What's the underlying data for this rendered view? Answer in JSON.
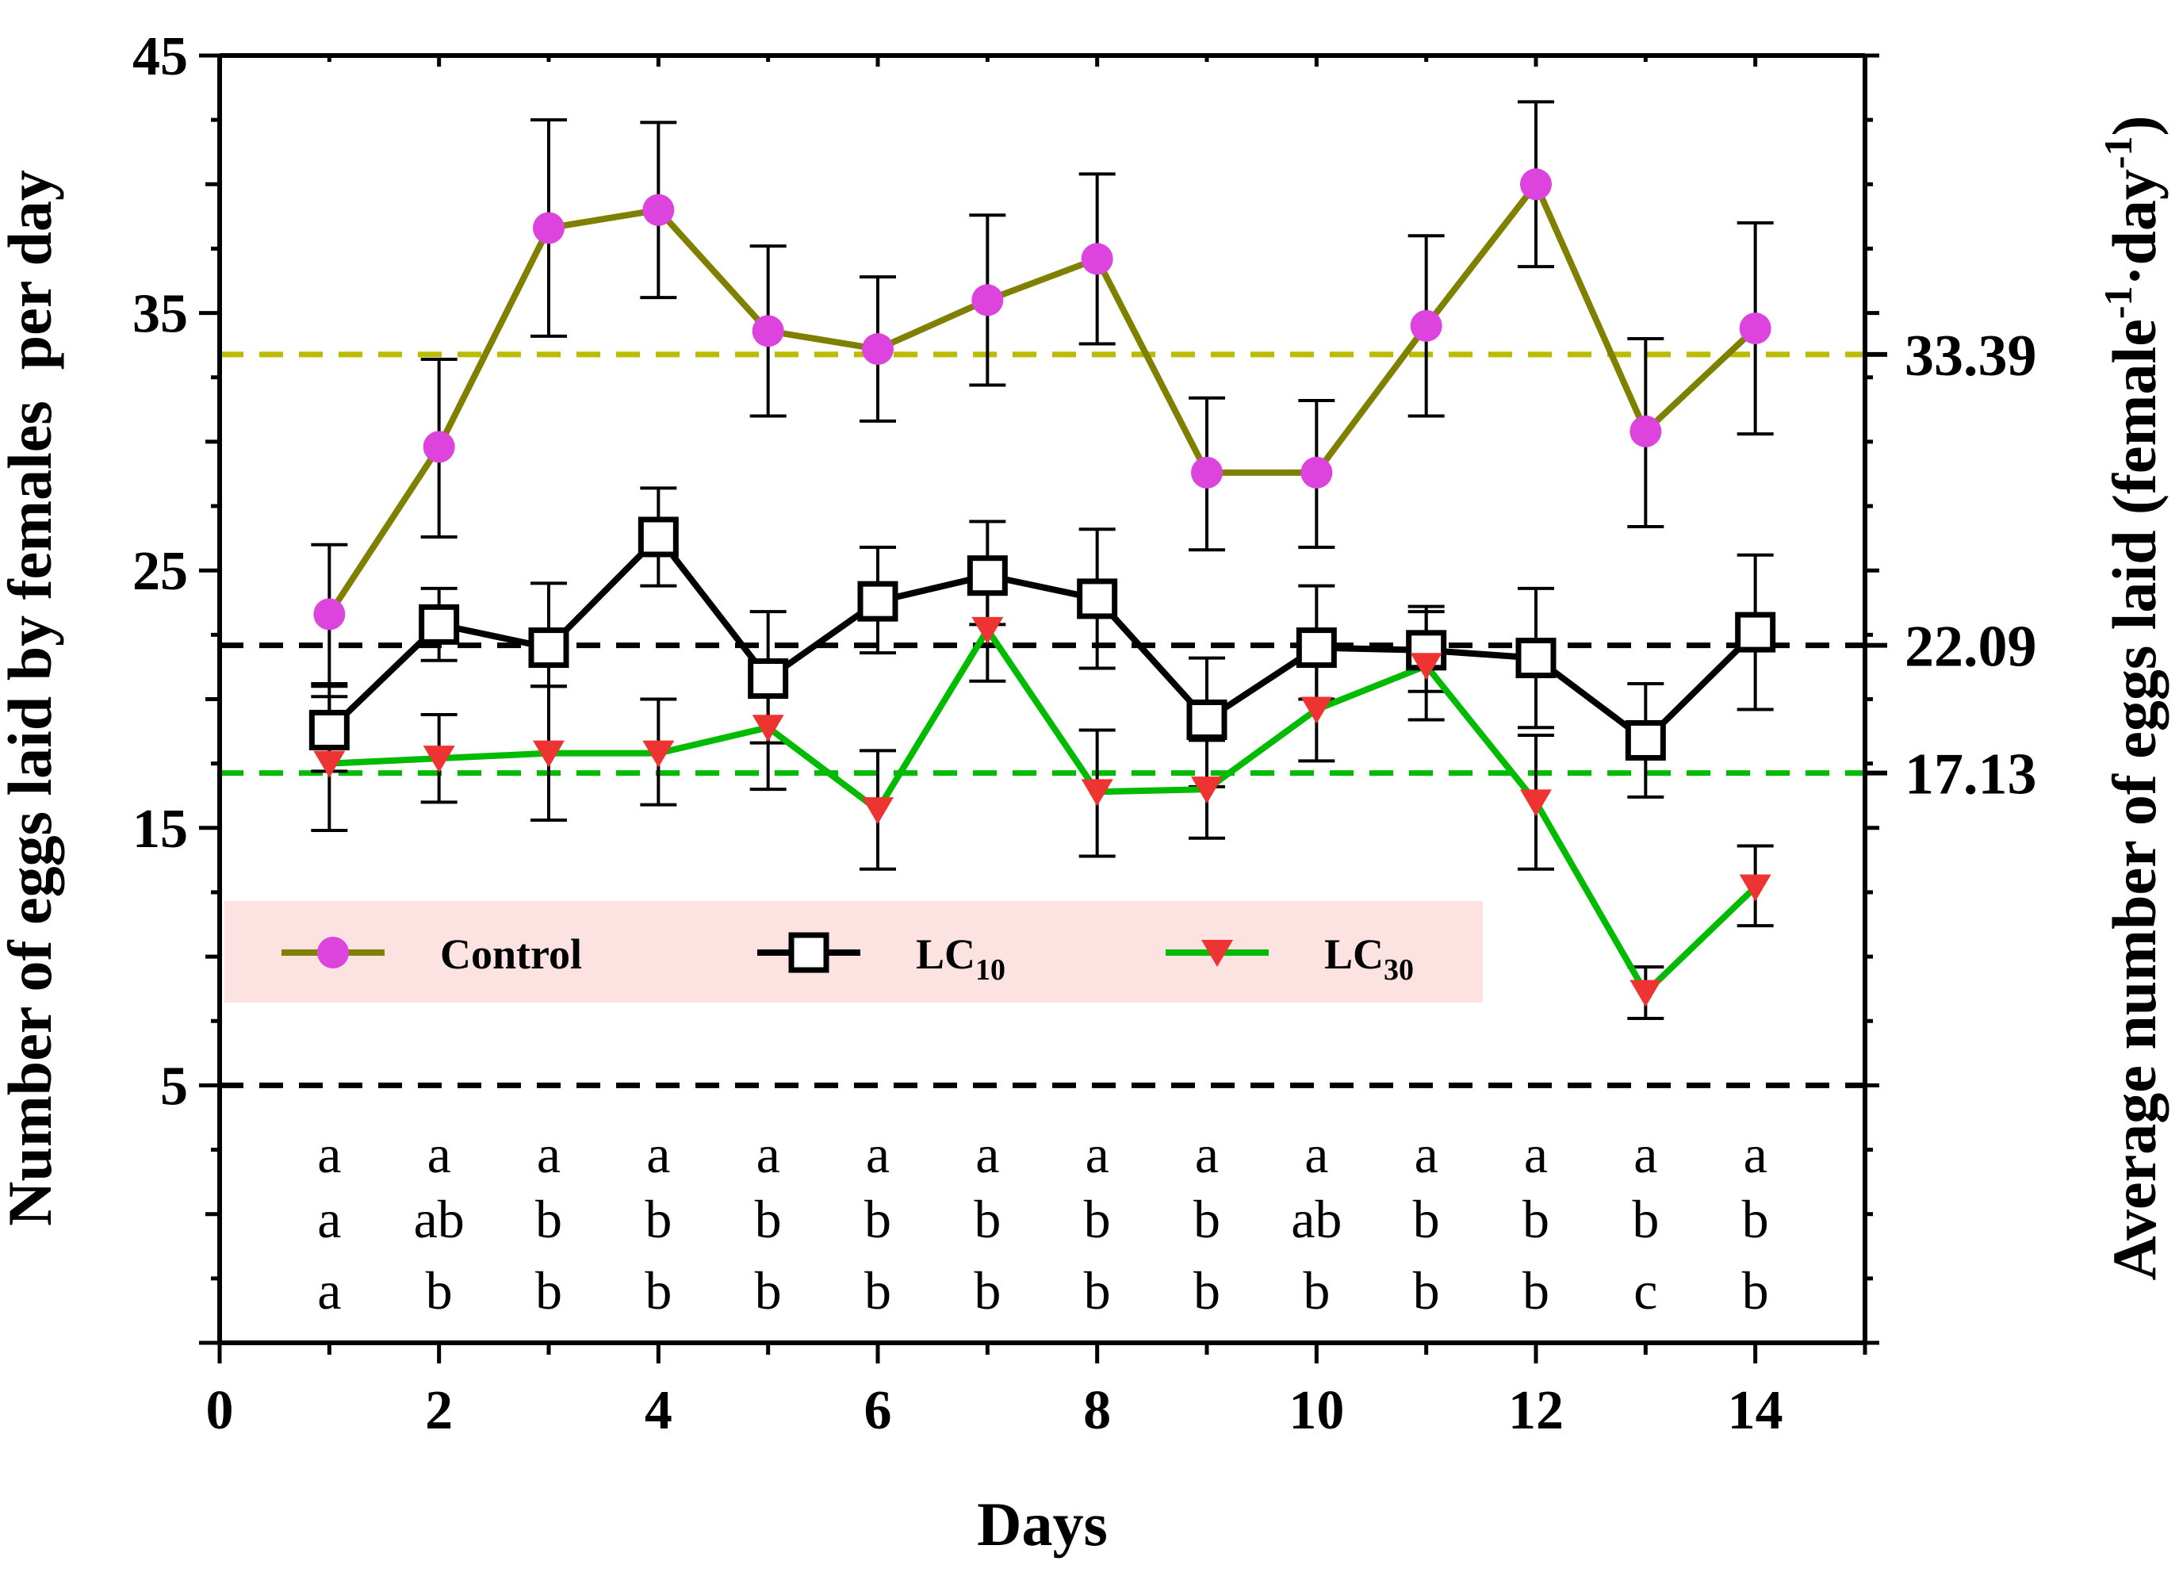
{
  "chart_data": {
    "type": "line",
    "xlabel": "Days",
    "ylabel": "Number of eggs laid by females  per day",
    "y2label_main": "Average number of eggs laid (female",
    "y2label_sup1": "-1",
    "y2label_mid": "·day",
    "y2label_sup2": "-1",
    "y2label_end": ")",
    "xlim": [
      0,
      15
    ],
    "ylim": [
      -5,
      45
    ],
    "xticks": [
      "0",
      "2",
      "4",
      "6",
      "8",
      "10",
      "12",
      "14"
    ],
    "yticks": [
      "5",
      "15",
      "25",
      "35",
      "45"
    ],
    "x": [
      1,
      2,
      3,
      4,
      5,
      6,
      7,
      8,
      9,
      10,
      11,
      12,
      13,
      14
    ],
    "series": [
      {
        "name": "Control",
        "label_main": "Control",
        "label_sub": "",
        "line_color": "#7f7f00",
        "marker_color": "#dd44dd",
        "marker": "circle",
        "values": [
          23.3,
          29.8,
          38.3,
          39.0,
          34.3,
          33.6,
          35.5,
          37.1,
          28.8,
          28.8,
          34.5,
          40.0,
          30.4,
          34.4
        ],
        "err_low": [
          20.6,
          26.3,
          34.1,
          35.6,
          31.0,
          30.8,
          32.2,
          33.8,
          25.8,
          25.9,
          31.0,
          36.8,
          26.7,
          30.3
        ],
        "err_high": [
          26.0,
          33.2,
          42.5,
          42.4,
          37.6,
          36.4,
          38.8,
          40.4,
          31.7,
          31.6,
          38.0,
          43.2,
          34.0,
          38.5
        ]
      },
      {
        "name": "LC10",
        "label_main": "LC",
        "label_sub": "10",
        "line_color": "#000000",
        "marker_color": "#000000",
        "marker": "square",
        "values": [
          18.8,
          22.9,
          22.0,
          26.3,
          20.8,
          23.8,
          24.8,
          23.9,
          19.2,
          22.0,
          21.9,
          21.6,
          18.4,
          22.6
        ],
        "err_low": [
          17.2,
          21.5,
          20.5,
          24.4,
          18.3,
          21.8,
          22.9,
          21.2,
          16.6,
          20.0,
          20.3,
          18.9,
          16.2,
          19.6
        ],
        "err_high": [
          20.5,
          24.3,
          24.5,
          28.2,
          23.4,
          25.9,
          26.9,
          26.6,
          21.6,
          24.4,
          23.4,
          24.3,
          20.6,
          25.6
        ]
      },
      {
        "name": "LC30",
        "label_main": "LC",
        "label_sub": "30",
        "line_color": "#00bb00",
        "marker_color": "#ee3333",
        "marker": "triangle-down",
        "values": [
          17.5,
          17.7,
          17.9,
          17.9,
          18.9,
          15.7,
          22.7,
          16.4,
          16.5,
          19.6,
          21.3,
          16.0,
          8.6,
          12.7
        ],
        "err_low": [
          14.9,
          16.0,
          15.3,
          15.9,
          16.5,
          13.4,
          20.7,
          13.9,
          14.6,
          17.6,
          19.2,
          13.4,
          7.6,
          11.2
        ],
        "err_high": [
          20.1,
          19.4,
          20.5,
          20.0,
          21.4,
          18.0,
          24.7,
          18.8,
          18.4,
          21.6,
          23.6,
          18.6,
          9.6,
          14.3
        ]
      }
    ],
    "reference_lines": [
      {
        "value": 33.39,
        "label": "33.39",
        "color": "#bbbb00"
      },
      {
        "value": 22.09,
        "label": "22.09",
        "color": "#000000"
      },
      {
        "value": 17.13,
        "label": "17.13",
        "color": "#00bb00"
      },
      {
        "value": 5,
        "label": "",
        "color": "#000000"
      }
    ],
    "significance_letters": {
      "Control": [
        "a",
        "a",
        "a",
        "a",
        "a",
        "a",
        "a",
        "a",
        "a",
        "a",
        "a",
        "a",
        "a",
        "a"
      ],
      "LC10": [
        "a",
        "ab",
        "b",
        "b",
        "b",
        "b",
        "b",
        "b",
        "b",
        "ab",
        "b",
        "b",
        "b",
        "b"
      ],
      "LC30": [
        "a",
        "b",
        "b",
        "b",
        "b",
        "b",
        "b",
        "b",
        "b",
        "b",
        "b",
        "b",
        "c",
        "b"
      ]
    },
    "legend": {
      "placement": "center-left",
      "background": "#fde2e2"
    }
  }
}
